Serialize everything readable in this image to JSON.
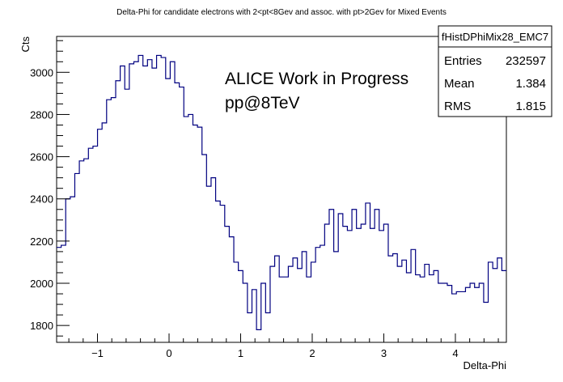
{
  "chart_data": {
    "type": "histogram",
    "title": "Delta-Phi for candidate electrons with 2<pt<8Gev and assoc. with pt>2Gev for Mixed Events",
    "xlabel": "Delta-Phi",
    "ylabel": "Cts",
    "xlim": [
      -1.5708,
      4.7124
    ],
    "ylim": [
      1720,
      3170
    ],
    "xticks": [
      -1,
      0,
      1,
      2,
      3,
      4
    ],
    "xtick_labels": [
      "−1",
      "0",
      "1",
      "2",
      "3",
      "4"
    ],
    "yticks": [
      1800,
      2000,
      2200,
      2400,
      2600,
      2800,
      3000
    ],
    "yticks_labels": [
      "1800",
      "2000",
      "2200",
      "2400",
      "2600",
      "2800",
      "3000"
    ],
    "grid": false,
    "line_color": "#000080",
    "annotations": [
      "ALICE Work in Progress",
      "pp@8TeV"
    ],
    "stats_box": {
      "name": "fHistDPhiMix28_EMC7",
      "rows": [
        {
          "label": "Entries",
          "value": "232597"
        },
        {
          "label": "Mean",
          "value": "1.384"
        },
        {
          "label": "RMS",
          "value": "1.815"
        }
      ]
    },
    "series": [
      {
        "values": [
          2170,
          2180,
          2400,
          2410,
          2520,
          2580,
          2590,
          2640,
          2650,
          2730,
          2760,
          2870,
          2880,
          2960,
          3030,
          2920,
          3040,
          3050,
          3080,
          3030,
          3060,
          3020,
          3080,
          3070,
          2970,
          3050,
          2950,
          2930,
          2790,
          2800,
          2750,
          2740,
          2610,
          2460,
          2500,
          2390,
          2370,
          2270,
          2220,
          2100,
          2060,
          2000,
          1860,
          1970,
          1780,
          2000,
          1860,
          2080,
          2130,
          2030,
          2030,
          2080,
          2120,
          2070,
          2150,
          2030,
          2100,
          2170,
          2180,
          2280,
          2350,
          2150,
          2330,
          2270,
          2250,
          2350,
          2260,
          2280,
          2380,
          2260,
          2350,
          2250,
          2280,
          2130,
          2140,
          2080,
          2110,
          2050,
          2160,
          2040,
          2030,
          2090,
          2040,
          2060,
          2000,
          2000,
          1990,
          1950,
          1960,
          1960,
          1980,
          2000,
          1980,
          2000,
          1910,
          2100,
          2070,
          2120,
          2060
        ]
      }
    ]
  }
}
